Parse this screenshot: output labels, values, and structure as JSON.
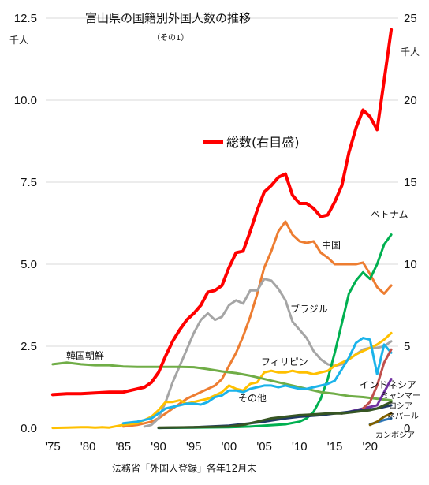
{
  "chart_data": {
    "type": "line",
    "title": "富山県の国籍別外国人数の推移",
    "subtitle": "（その1）",
    "source": "法務省「外国人登録」各年12月末",
    "left_axis": {
      "unit": "千人",
      "ylim": [
        0,
        12.5
      ],
      "ticks": [
        "0.0",
        "2.5",
        "5.0",
        "7.5",
        "10.0",
        "12.5"
      ]
    },
    "right_axis": {
      "unit": "千人",
      "ylim": [
        0,
        25
      ],
      "ticks": [
        "0",
        "5",
        "10",
        "15",
        "20",
        "25"
      ]
    },
    "x_ticks": [
      "'75",
      "'80",
      "'85",
      "'90",
      "'95",
      "'00",
      "'05",
      "'10",
      "'15",
      "'20"
    ],
    "xlim": [
      1974,
      2024
    ],
    "legend": {
      "label": "総数(右目盛)",
      "color": "#ff0000"
    },
    "grid": true,
    "series": [
      {
        "name": "総数(右目盛)",
        "axis": "right",
        "color": "#ff0000",
        "width": 4,
        "x": [
          1975,
          1977,
          1979,
          1981,
          1983,
          1985,
          1987,
          1988,
          1989,
          1990,
          1991,
          1992,
          1993,
          1994,
          1995,
          1996,
          1997,
          1998,
          1999,
          2000,
          2001,
          2002,
          2003,
          2004,
          2005,
          2006,
          2007,
          2008,
          2009,
          2010,
          2011,
          2012,
          2013,
          2014,
          2015,
          2016,
          2017,
          2018,
          2019,
          2020,
          2021,
          2022,
          2023
        ],
        "y": [
          2.05,
          2.1,
          2.1,
          2.15,
          2.2,
          2.2,
          2.4,
          2.5,
          2.8,
          3.4,
          4.4,
          5.3,
          6.0,
          6.6,
          7.0,
          7.5,
          8.3,
          8.4,
          8.7,
          9.8,
          10.7,
          10.8,
          12.0,
          13.3,
          14.4,
          14.8,
          15.3,
          15.5,
          14.2,
          13.7,
          13.7,
          13.4,
          12.9,
          13.0,
          13.8,
          14.8,
          16.8,
          18.3,
          19.4,
          19.0,
          18.2,
          21.2,
          24.3
        ]
      },
      {
        "name": "中国",
        "axis": "left",
        "color": "#ed7d31",
        "width": 3,
        "x": [
          1985,
          1987,
          1988,
          1989,
          1990,
          1991,
          1992,
          1993,
          1994,
          1995,
          1996,
          1997,
          1998,
          1999,
          2000,
          2001,
          2002,
          2003,
          2004,
          2005,
          2006,
          2007,
          2008,
          2009,
          2010,
          2011,
          2012,
          2013,
          2014,
          2015,
          2016,
          2017,
          2018,
          2019,
          2020,
          2021,
          2022,
          2023
        ],
        "y": [
          0.05,
          0.1,
          0.15,
          0.2,
          0.3,
          0.45,
          0.6,
          0.75,
          0.9,
          1.0,
          1.1,
          1.2,
          1.3,
          1.5,
          1.9,
          2.3,
          2.8,
          3.4,
          4.1,
          4.9,
          5.4,
          6.0,
          6.3,
          5.9,
          5.7,
          5.65,
          5.7,
          5.35,
          5.2,
          5.0,
          5.0,
          5.0,
          5.0,
          5.05,
          4.7,
          4.3,
          4.1,
          4.35
        ]
      },
      {
        "name": "ブラジル",
        "axis": "left",
        "color": "#a5a5a5",
        "width": 3,
        "x": [
          1988,
          1989,
          1990,
          1991,
          1992,
          1993,
          1994,
          1995,
          1996,
          1997,
          1998,
          1999,
          2000,
          2001,
          2002,
          2003,
          2004,
          2005,
          2006,
          2007,
          2008,
          2009,
          2010,
          2011,
          2012,
          2013,
          2014,
          2015,
          2016,
          2017,
          2018,
          2019,
          2020,
          2021,
          2022,
          2023
        ],
        "y": [
          0.05,
          0.1,
          0.3,
          0.8,
          1.4,
          1.9,
          2.4,
          2.9,
          3.3,
          3.5,
          3.3,
          3.4,
          3.75,
          3.9,
          3.8,
          4.2,
          4.2,
          4.55,
          4.5,
          4.25,
          3.9,
          3.25,
          3.0,
          2.75,
          2.35,
          2.1,
          1.95,
          1.9,
          1.95,
          2.1,
          2.25,
          2.4,
          2.45,
          2.45,
          2.5,
          2.65
        ]
      },
      {
        "name": "ベトナム",
        "axis": "left",
        "color": "#00b050",
        "width": 3,
        "x": [
          1990,
          1995,
          2000,
          2003,
          2005,
          2008,
          2010,
          2011,
          2012,
          2013,
          2014,
          2015,
          2016,
          2017,
          2018,
          2019,
          2020,
          2021,
          2022,
          2023
        ],
        "y": [
          0.01,
          0.02,
          0.03,
          0.05,
          0.08,
          0.12,
          0.2,
          0.3,
          0.5,
          0.9,
          1.5,
          2.3,
          3.2,
          4.1,
          4.5,
          4.75,
          4.55,
          5.0,
          5.6,
          5.9
        ]
      },
      {
        "name": "フィリピン",
        "axis": "left",
        "color": "#ffc000",
        "width": 3,
        "x": [
          1975,
          1977,
          1979,
          1980,
          1981,
          1982,
          1983,
          1985,
          1987,
          1988,
          1989,
          1990,
          1991,
          1992,
          1993,
          1994,
          1995,
          1996,
          1997,
          1998,
          1999,
          2000,
          2001,
          2002,
          2003,
          2004,
          2005,
          2006,
          2007,
          2008,
          2009,
          2010,
          2011,
          2012,
          2013,
          2014,
          2015,
          2016,
          2017,
          2018,
          2019,
          2020,
          2021,
          2022,
          2023
        ],
        "y": [
          0.01,
          0.02,
          0.03,
          0.03,
          0.02,
          0.03,
          0.02,
          0.1,
          0.15,
          0.25,
          0.35,
          0.55,
          0.8,
          0.8,
          0.85,
          0.75,
          0.8,
          0.85,
          0.9,
          1.0,
          1.1,
          1.3,
          1.2,
          1.15,
          1.35,
          1.4,
          1.7,
          1.75,
          1.7,
          1.7,
          1.75,
          1.7,
          1.7,
          1.65,
          1.7,
          1.75,
          1.9,
          2.0,
          2.1,
          2.25,
          2.35,
          2.45,
          2.55,
          2.7,
          2.9
        ]
      },
      {
        "name": "韓国朝鮮",
        "axis": "left",
        "color": "#70ad47",
        "width": 3,
        "x": [
          1975,
          1977,
          1979,
          1981,
          1983,
          1985,
          1987,
          1989,
          1991,
          1993,
          1995,
          1997,
          1999,
          2001,
          2003,
          2005,
          2007,
          2009,
          2011,
          2013,
          2015,
          2017,
          2019,
          2021,
          2023
        ],
        "y": [
          1.95,
          2.0,
          1.95,
          1.92,
          1.92,
          1.88,
          1.87,
          1.87,
          1.87,
          1.87,
          1.86,
          1.8,
          1.73,
          1.68,
          1.6,
          1.5,
          1.4,
          1.3,
          1.2,
          1.1,
          1.05,
          0.98,
          0.95,
          0.9,
          0.85
        ]
      },
      {
        "name": "その他",
        "axis": "left",
        "color": "#1ab3ea",
        "width": 3,
        "x": [
          1985,
          1987,
          1989,
          1990,
          1991,
          1992,
          1993,
          1994,
          1995,
          1996,
          1997,
          1998,
          1999,
          2000,
          2001,
          2002,
          2003,
          2004,
          2005,
          2006,
          2007,
          2008,
          2009,
          2010,
          2011,
          2012,
          2013,
          2014,
          2015,
          2016,
          2017,
          2018,
          2019,
          2020,
          2021,
          2022,
          2023
        ],
        "y": [
          0.15,
          0.2,
          0.3,
          0.45,
          0.6,
          0.65,
          0.7,
          0.75,
          0.75,
          0.72,
          0.8,
          0.95,
          1.0,
          1.15,
          1.15,
          1.1,
          1.2,
          1.25,
          1.3,
          1.3,
          1.25,
          1.3,
          1.25,
          1.2,
          1.2,
          1.25,
          1.3,
          1.35,
          1.45,
          1.8,
          2.15,
          2.6,
          2.75,
          2.7,
          1.65,
          2.55,
          2.3
        ]
      },
      {
        "name": "インドネシア",
        "axis": "left",
        "color": "#7030a0",
        "width": 3,
        "x": [
          2016,
          2017,
          2018,
          2019,
          2020,
          2021,
          2022,
          2023
        ],
        "y": [
          0.45,
          0.5,
          0.55,
          0.6,
          0.65,
          0.7,
          1.1,
          1.5
        ]
      },
      {
        "name": "ミャンマー",
        "axis": "left",
        "color": "#c0504d",
        "width": 3,
        "x": [
          2019,
          2020,
          2021,
          2022,
          2023
        ],
        "y": [
          0.6,
          0.8,
          1.3,
          2.0,
          2.4
        ]
      },
      {
        "name": "ロシア",
        "axis": "left",
        "color": "#1f3864",
        "width": 3,
        "x": [
          1990,
          1995,
          2000,
          2003,
          2005,
          2008,
          2010,
          2013,
          2015,
          2017,
          2019,
          2021,
          2023
        ],
        "y": [
          0.01,
          0.03,
          0.08,
          0.15,
          0.2,
          0.3,
          0.35,
          0.4,
          0.45,
          0.5,
          0.55,
          0.6,
          0.7
        ]
      },
      {
        "name": "ネパール",
        "axis": "left",
        "color": "#375623",
        "width": 3,
        "x": [
          1990,
          1995,
          2000,
          2002,
          2004,
          2006,
          2008,
          2010,
          2012,
          2014,
          2016,
          2018,
          2020,
          2021,
          2022,
          2023
        ],
        "y": [
          0.02,
          0.03,
          0.05,
          0.1,
          0.2,
          0.3,
          0.35,
          0.4,
          0.42,
          0.45,
          0.45,
          0.5,
          0.55,
          0.6,
          0.7,
          0.8
        ]
      },
      {
        "name": "カンボジア",
        "axis": "left",
        "color": "#2e75b6",
        "width": 3,
        "x": [
          2020,
          2021,
          2022,
          2023
        ],
        "y": [
          0.12,
          0.18,
          0.25,
          0.3
        ]
      },
      {
        "name": "ネパール2",
        "axis": "left",
        "color": "#806000",
        "width": 3,
        "x": [
          2020,
          2021,
          2022,
          2023
        ],
        "y": [
          0.1,
          0.2,
          0.35,
          0.45
        ]
      }
    ],
    "labels": [
      {
        "text": "中国"
      },
      {
        "text": "ブラジル"
      },
      {
        "text": "ベトナム"
      },
      {
        "text": "フィリピン"
      },
      {
        "text": "韓国朝鮮"
      },
      {
        "text": "その他"
      },
      {
        "text": "インドネシア"
      },
      {
        "text": "ミャンマー"
      },
      {
        "text": "ロシア"
      },
      {
        "text": "ネパール"
      },
      {
        "text": "カンボジア"
      }
    ]
  }
}
